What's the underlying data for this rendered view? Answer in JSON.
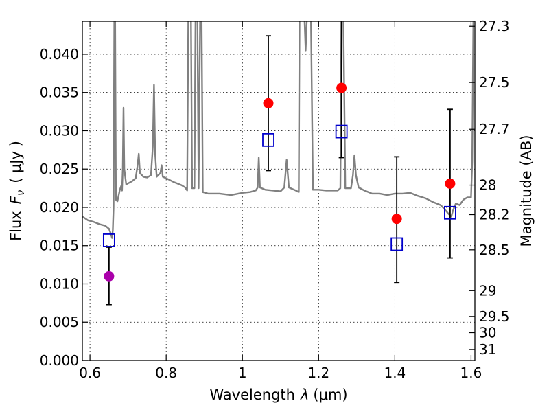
{
  "chart_data": {
    "type": "scatter",
    "xlabel": "Wavelength",
    "xlabel_symbol": "λ",
    "xlabel_unit": "(μm)",
    "ylabel": "Flux",
    "ylabel_symbol": "F",
    "ylabel_subscript": "ν",
    "ylabel_unit": "( μJy )",
    "y2label": "Magnitude (AB)",
    "xlim": [
      0.58,
      1.61
    ],
    "ylim": [
      0.0,
      0.0443
    ],
    "grid": true,
    "x_ticks": [
      0.6,
      0.8,
      1.0,
      1.2,
      1.4,
      1.6
    ],
    "x_tick_labels": [
      "0.6",
      "0.8",
      "1",
      "1.2",
      "1.4",
      "1.6"
    ],
    "y_ticks": [
      0.0,
      0.005,
      0.01,
      0.015,
      0.02,
      0.025,
      0.03,
      0.035,
      0.04
    ],
    "y_tick_labels": [
      "0.000",
      "0.005",
      "0.010",
      "0.015",
      "0.020",
      "0.025",
      "0.030",
      "0.035",
      "0.040"
    ],
    "mag_ticks": [
      27.3,
      27.5,
      27.7,
      28,
      28.2,
      28.5,
      29,
      29.5,
      30,
      31
    ],
    "mag_tick_labels": [
      "27.3",
      "27.5",
      "27.7",
      "28",
      "28.2",
      "28.5",
      "29",
      "29.5",
      "30",
      "31"
    ],
    "observed": [
      {
        "x": 0.65,
        "y": 0.011,
        "yerr_low": 0.0073,
        "yerr_high": 0.0148,
        "color": "#aa00aa"
      },
      {
        "x": 1.068,
        "y": 0.0336,
        "yerr_low": 0.0248,
        "yerr_high": 0.0424,
        "color": "#ff0000"
      },
      {
        "x": 1.26,
        "y": 0.0356,
        "yerr_low": 0.0265,
        "yerr_high": 0.0445,
        "color": "#ff0000"
      },
      {
        "x": 1.405,
        "y": 0.0185,
        "yerr_low": 0.0102,
        "yerr_high": 0.0266,
        "color": "#ff0000"
      },
      {
        "x": 1.545,
        "y": 0.0231,
        "yerr_low": 0.0134,
        "yerr_high": 0.0328,
        "color": "#ff0000"
      }
    ],
    "model_photometry": [
      {
        "x": 0.65,
        "y": 0.0157
      },
      {
        "x": 1.068,
        "y": 0.0288
      },
      {
        "x": 1.26,
        "y": 0.0299
      },
      {
        "x": 1.405,
        "y": 0.0152
      },
      {
        "x": 1.545,
        "y": 0.0193
      }
    ],
    "model_photometry_color": "#0000cc",
    "spectrum_color": "#808080",
    "spectrum": [
      [
        0.58,
        0.0188
      ],
      [
        0.595,
        0.0183
      ],
      [
        0.61,
        0.0181
      ],
      [
        0.625,
        0.0178
      ],
      [
        0.64,
        0.0176
      ],
      [
        0.65,
        0.0172
      ],
      [
        0.655,
        0.0165
      ],
      [
        0.658,
        0.016
      ],
      [
        0.66,
        0.017
      ],
      [
        0.662,
        0.02
      ],
      [
        0.664,
        0.0445
      ],
      [
        0.666,
        0.0445
      ],
      [
        0.668,
        0.021
      ],
      [
        0.672,
        0.0208
      ],
      [
        0.678,
        0.0222
      ],
      [
        0.682,
        0.0228
      ],
      [
        0.684,
        0.0222
      ],
      [
        0.686,
        0.025
      ],
      [
        0.688,
        0.033
      ],
      [
        0.69,
        0.025
      ],
      [
        0.695,
        0.023
      ],
      [
        0.71,
        0.0234
      ],
      [
        0.72,
        0.0238
      ],
      [
        0.725,
        0.0255
      ],
      [
        0.728,
        0.027
      ],
      [
        0.731,
        0.0245
      ],
      [
        0.74,
        0.024
      ],
      [
        0.75,
        0.0239
      ],
      [
        0.76,
        0.0242
      ],
      [
        0.765,
        0.028
      ],
      [
        0.768,
        0.036
      ],
      [
        0.771,
        0.027
      ],
      [
        0.775,
        0.024
      ],
      [
        0.785,
        0.0245
      ],
      [
        0.788,
        0.0255
      ],
      [
        0.791,
        0.024
      ],
      [
        0.8,
        0.0238
      ],
      [
        0.82,
        0.0233
      ],
      [
        0.84,
        0.0229
      ],
      [
        0.85,
        0.0226
      ],
      [
        0.855,
        0.0222
      ],
      [
        0.858,
        0.0445
      ],
      [
        0.865,
        0.0445
      ],
      [
        0.868,
        0.0225
      ],
      [
        0.874,
        0.0225
      ],
      [
        0.877,
        0.0445
      ],
      [
        0.882,
        0.0445
      ],
      [
        0.885,
        0.0225
      ],
      [
        0.889,
        0.0445
      ],
      [
        0.893,
        0.0445
      ],
      [
        0.896,
        0.022
      ],
      [
        0.91,
        0.0218
      ],
      [
        0.94,
        0.0218
      ],
      [
        0.97,
        0.0216
      ],
      [
        1.0,
        0.0219
      ],
      [
        1.02,
        0.022
      ],
      [
        1.035,
        0.0222
      ],
      [
        1.04,
        0.0226
      ],
      [
        1.043,
        0.0265
      ],
      [
        1.046,
        0.0226
      ],
      [
        1.06,
        0.0223
      ],
      [
        1.08,
        0.0222
      ],
      [
        1.1,
        0.0221
      ],
      [
        1.11,
        0.0226
      ],
      [
        1.116,
        0.0262
      ],
      [
        1.122,
        0.0226
      ],
      [
        1.14,
        0.0222
      ],
      [
        1.148,
        0.022
      ],
      [
        1.15,
        0.0445
      ],
      [
        1.163,
        0.0445
      ],
      [
        1.166,
        0.0405
      ],
      [
        1.169,
        0.0445
      ],
      [
        1.18,
        0.0445
      ],
      [
        1.185,
        0.0223
      ],
      [
        1.2,
        0.0223
      ],
      [
        1.22,
        0.0222
      ],
      [
        1.25,
        0.0222
      ],
      [
        1.257,
        0.0225
      ],
      [
        1.26,
        0.0445
      ],
      [
        1.265,
        0.0445
      ],
      [
        1.27,
        0.0225
      ],
      [
        1.285,
        0.0225
      ],
      [
        1.29,
        0.0242
      ],
      [
        1.294,
        0.0268
      ],
      [
        1.298,
        0.0242
      ],
      [
        1.305,
        0.0226
      ],
      [
        1.32,
        0.0222
      ],
      [
        1.34,
        0.0218
      ],
      [
        1.36,
        0.0218
      ],
      [
        1.38,
        0.0216
      ],
      [
        1.4,
        0.0218
      ],
      [
        1.42,
        0.0218
      ],
      [
        1.44,
        0.0219
      ],
      [
        1.46,
        0.0215
      ],
      [
        1.48,
        0.0212
      ],
      [
        1.5,
        0.0207
      ],
      [
        1.52,
        0.0203
      ],
      [
        1.53,
        0.0198
      ],
      [
        1.54,
        0.0192
      ],
      [
        1.548,
        0.0188
      ],
      [
        1.552,
        0.0195
      ],
      [
        1.56,
        0.0205
      ],
      [
        1.57,
        0.0203
      ],
      [
        1.58,
        0.021
      ],
      [
        1.59,
        0.0213
      ],
      [
        1.6,
        0.0213
      ],
      [
        1.603,
        0.026
      ],
      [
        1.606,
        0.0445
      ],
      [
        1.61,
        0.0445
      ]
    ]
  }
}
